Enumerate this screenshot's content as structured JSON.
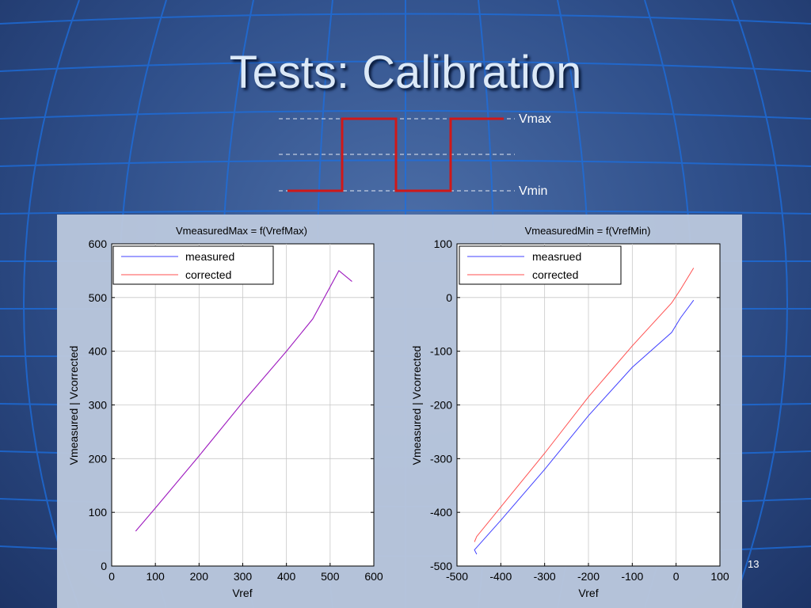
{
  "slide": {
    "title": "Tests: Calibration",
    "page_number": "13",
    "pulse_labels": {
      "max": "Vmax",
      "min": "Vmin"
    }
  },
  "colors": {
    "pulse": "#d01818",
    "measured": "#4040ff",
    "corrected": "#ff5050",
    "overlap": "#a020c0",
    "panel": "#b9c6dc"
  },
  "chart_data": [
    {
      "type": "line",
      "title": "VmeasuredMax = f(VrefMax)",
      "xlabel": "Vref",
      "ylabel": "Vmeasured | Vcorrected",
      "xlim": [
        0,
        600
      ],
      "ylim": [
        0,
        600
      ],
      "xticks": [
        "0",
        "100",
        "200",
        "300",
        "400",
        "500",
        "600"
      ],
      "yticks": [
        "0",
        "100",
        "200",
        "300",
        "400",
        "500",
        "600"
      ],
      "grid": true,
      "legend_position": "top-left",
      "series": [
        {
          "name": "measured",
          "x": [
            55,
            100,
            200,
            300,
            400,
            460,
            520,
            550
          ],
          "y": [
            65,
            108,
            205,
            305,
            400,
            460,
            550,
            530
          ]
        },
        {
          "name": "corrected",
          "x": [
            55,
            100,
            200,
            300,
            400,
            460,
            520,
            550
          ],
          "y": [
            65,
            108,
            205,
            305,
            400,
            460,
            550,
            530
          ]
        }
      ]
    },
    {
      "type": "line",
      "title": "VmeasuredMin = f(VrefMin)",
      "xlabel": "Vref",
      "ylabel": "Vmeasured | Vcorrected",
      "xlim": [
        -500,
        100
      ],
      "ylim": [
        -500,
        100
      ],
      "xticks": [
        "-500",
        "-400",
        "-300",
        "-200",
        "-100",
        "0",
        "100"
      ],
      "yticks": [
        "-500",
        "-400",
        "-300",
        "-200",
        "-100",
        "0",
        "100"
      ],
      "grid": true,
      "legend_position": "top-left",
      "series": [
        {
          "name": "measrued",
          "x": [
            -455,
            -460,
            -400,
            -300,
            -200,
            -100,
            -10,
            10,
            40
          ],
          "y": [
            -478,
            -470,
            -415,
            -320,
            -220,
            -130,
            -65,
            -38,
            -5
          ]
        },
        {
          "name": "corrected",
          "x": [
            -460,
            -455,
            -400,
            -300,
            -200,
            -100,
            -10,
            10,
            40
          ],
          "y": [
            -455,
            -445,
            -390,
            -290,
            -185,
            -90,
            -10,
            15,
            55
          ]
        }
      ]
    }
  ]
}
